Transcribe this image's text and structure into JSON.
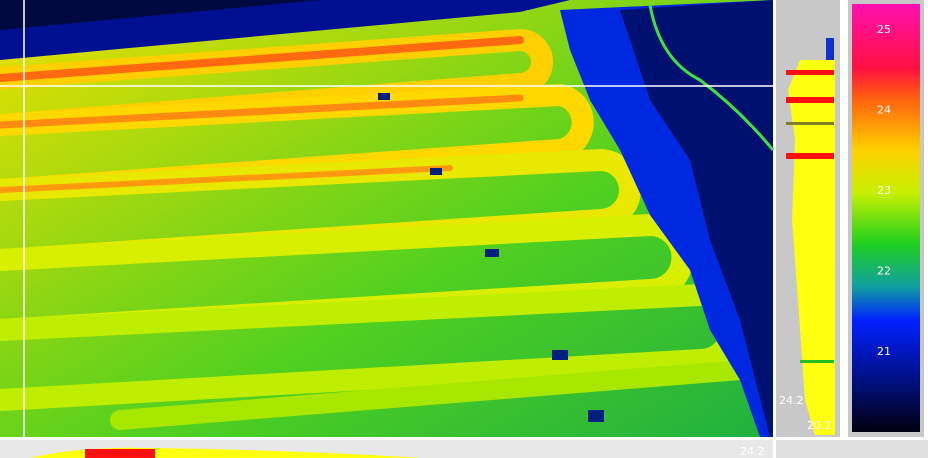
{
  "scale": {
    "labels": [
      "25",
      "24",
      "23",
      "22",
      "21"
    ]
  },
  "vertical_profile": {
    "max_label": "24.2",
    "min_label": "20.2"
  },
  "horizontal_profile": {
    "max_label": "24.2"
  }
}
